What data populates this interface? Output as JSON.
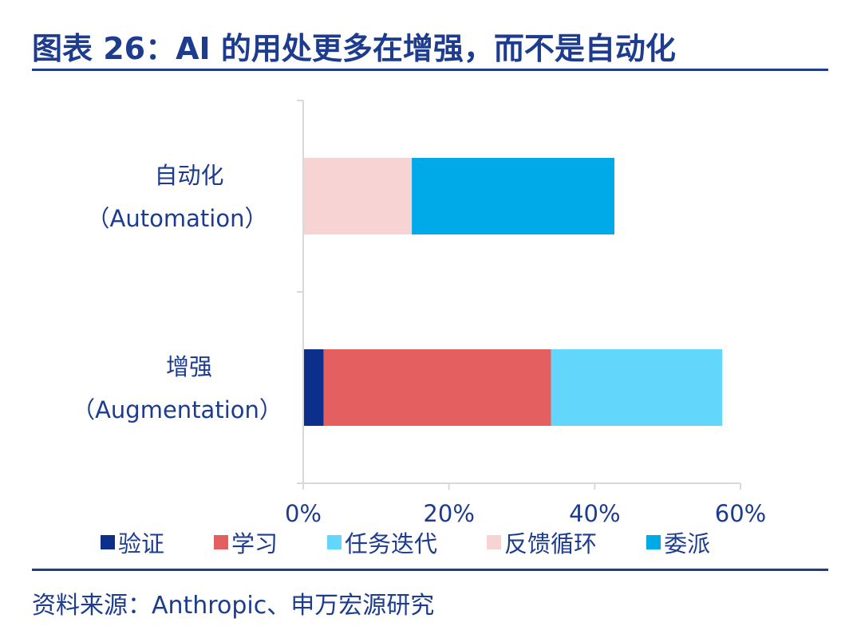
{
  "title": "图表 26：AI 的用处更多在增强，而不是自动化",
  "source": "资料来源：Anthropic、申万宏源研究",
  "colors": {
    "verify": "#0b2f8a",
    "learn": "#e46060",
    "task_iteration": "#63d6fb",
    "feedback_loop": "#f8d3d3",
    "delegation": "#00aae9",
    "text": "#1d3c8f",
    "axis": "#d9d9d9"
  },
  "chart_data": {
    "type": "bar",
    "orientation": "horizontal",
    "stacked": true,
    "categories": [
      {
        "name": "自动化",
        "sub": "（Automation）"
      },
      {
        "name": "增强",
        "sub": "（Augmentation）"
      }
    ],
    "series": [
      {
        "name": "验证",
        "color": "#0b2f8a",
        "values": [
          0,
          2.8
        ]
      },
      {
        "name": "学习",
        "color": "#e46060",
        "values": [
          0,
          31.2
        ]
      },
      {
        "name": "任务迭代",
        "color": "#63d6fb",
        "values": [
          0,
          23.5
        ]
      },
      {
        "name": "反馈循环",
        "color": "#f8d3d3",
        "values": [
          14.9,
          0
        ]
      },
      {
        "name": "委派",
        "color": "#00aae9",
        "values": [
          27.8,
          0
        ]
      }
    ],
    "xlim": [
      0,
      60
    ],
    "xticks": [
      0,
      20,
      40,
      60
    ],
    "xtick_labels": [
      "0%",
      "20%",
      "40%",
      "60%"
    ],
    "grid": false,
    "legend_position": "bottom"
  }
}
